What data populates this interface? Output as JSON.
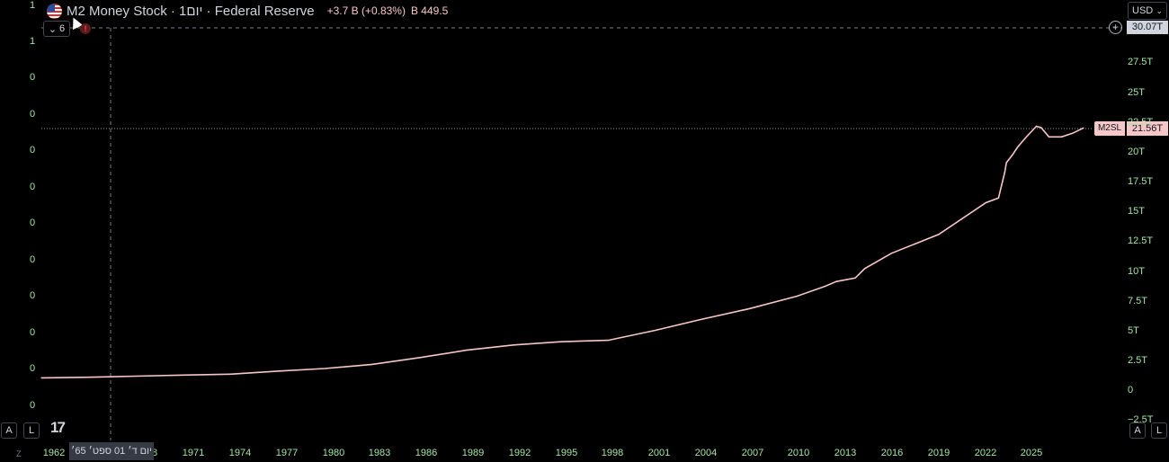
{
  "header": {
    "title": "M2 Money Stock · 1יום · Federal Reserve",
    "change": "+3.7 B (+0.83%)",
    "volume": "B 449.5",
    "flag_icon": "us-flag-icon"
  },
  "controls": {
    "collapse_count": "6",
    "warning_symbol": "!",
    "currency": "USD",
    "left_buttons": [
      "A",
      "L"
    ],
    "right_buttons": [
      "A",
      "L"
    ],
    "z_label": "Z",
    "logo": "TradingView"
  },
  "crosshair_label": {
    "price": "30.07T",
    "date": "יום ד׳ 01 ספט׳ 65׳"
  },
  "last_value": {
    "symbol": "M2SL",
    "value": "21.56T",
    "color": "#f7c7c7"
  },
  "left_axis_labels": [
    "1",
    "1",
    "0",
    "0",
    "0",
    "0",
    "0",
    "0",
    "0",
    "0",
    "0",
    "0"
  ],
  "chart_data": {
    "type": "line",
    "series": [
      {
        "name": "M2SL",
        "color": "#f7c7c7",
        "x": [
          1959,
          1962,
          1965,
          1968,
          1971,
          1974,
          1977,
          1980,
          1983,
          1986,
          1989,
          1992,
          1995,
          1998,
          2001,
          2004,
          2007,
          2008.8,
          2009.5,
          2010.7,
          2011.3,
          2013,
          2016,
          2019,
          2019.8,
          2020.2,
          2020.3,
          2020.7,
          2021,
          2021.5,
          2022.2,
          2022.5,
          2023,
          2023.8,
          2024.5,
          2025.2
        ],
        "y": [
          0.3,
          0.36,
          0.45,
          0.54,
          0.62,
          0.88,
          1.1,
          1.45,
          2.02,
          2.66,
          3.1,
          3.38,
          3.5,
          4.35,
          5.3,
          6.2,
          7.25,
          8.1,
          8.5,
          8.8,
          9.6,
          10.9,
          12.5,
          15.2,
          15.6,
          17.8,
          18.6,
          19.3,
          19.9,
          20.7,
          21.7,
          21.6,
          20.8,
          20.8,
          21.1,
          21.56
        ]
      }
    ],
    "y_ticks": [
      "30.07T",
      "27.5T",
      "25T",
      "22.5T",
      "20T",
      "17.5T",
      "15T",
      "12.5T",
      "10T",
      "7.5T",
      "5T",
      "2.5T",
      "0",
      "−2.5T"
    ],
    "x_ticks": [
      "1962",
      "65׳ ספט׳ 01 יום ד׳",
      "8",
      "1971",
      "1974",
      "1977",
      "1980",
      "1983",
      "1986",
      "1989",
      "1992",
      "1995",
      "1998",
      "2001",
      "2004",
      "2007",
      "2010",
      "2013",
      "2016",
      "2019",
      "2022",
      "2025"
    ],
    "x_range": [
      1959,
      2028
    ],
    "ylim": [
      -2.8,
      30.07
    ],
    "grid": false,
    "legend": "none"
  }
}
